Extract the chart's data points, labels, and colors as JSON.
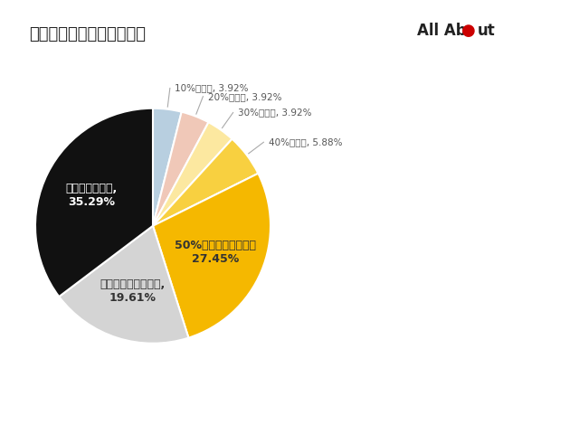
{
  "title": "東大生のお小遣いの貯蓄率",
  "slices": [
    {
      "label": "10%は貯蓄, 3.92%",
      "pct": 3.92,
      "color": "#b8cfe0",
      "inside": false
    },
    {
      "label": "20%は貯蓄, 3.92%",
      "pct": 3.92,
      "color": "#f0c8b8",
      "inside": false
    },
    {
      "label": "30%は貯蓄, 3.92%",
      "pct": 3.92,
      "color": "#fce8a0",
      "inside": false
    },
    {
      "label": "40%は貯蓄, 5.88%",
      "pct": 5.88,
      "color": "#f8d040",
      "inside": false
    },
    {
      "label": "50%以上貯蓄していた\n27.45%",
      "pct": 27.45,
      "color": "#f5b800",
      "inside": true,
      "text_color": "#333333"
    },
    {
      "label": "お小遣い制ではない,\n19.61%",
      "pct": 19.61,
      "color": "#d4d4d4",
      "inside": true,
      "text_color": "#333333"
    },
    {
      "label": "使い切っていた,\n35.29%",
      "pct": 35.29,
      "color": "#111111",
      "inside": true,
      "text_color": "#ffffff"
    }
  ],
  "background_color": "#ffffff",
  "start_angle": 90
}
